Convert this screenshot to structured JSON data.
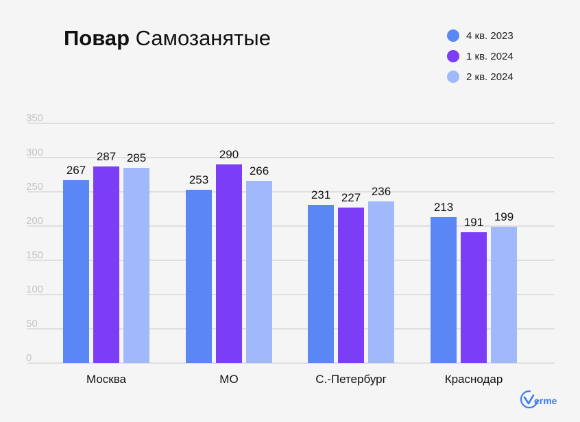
{
  "chart_data": {
    "type": "bar",
    "title_bold": "Повар",
    "title_rest": "Самозанятые",
    "categories": [
      "Москва",
      "МО",
      "С.-Петербург",
      "Краснодар"
    ],
    "series": [
      {
        "name": "4 кв. 2023",
        "color": "#5b87f5",
        "values": [
          267,
          253,
          231,
          213
        ]
      },
      {
        "name": "1 кв. 2024",
        "color": "#7b3df5",
        "values": [
          287,
          290,
          227,
          191
        ]
      },
      {
        "name": "2 кв. 2024",
        "color": "#9fb9fb",
        "values": [
          285,
          266,
          236,
          199
        ]
      }
    ],
    "yticks": [
      0,
      50,
      100,
      150,
      200,
      250,
      300,
      350
    ],
    "ylim": [
      0,
      350
    ],
    "grid": true,
    "legend_position": "top-right",
    "data_labels": true
  },
  "logo": {
    "text": "erme"
  }
}
